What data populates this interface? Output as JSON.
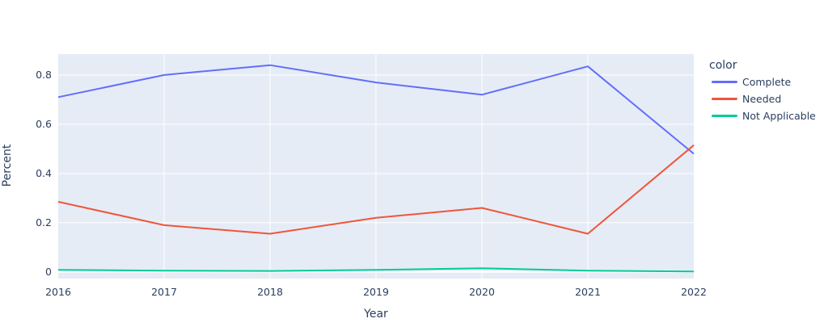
{
  "figure": {
    "background": "#ffffff",
    "plot_background": "#e5ecf6",
    "grid_color": "#ffffff",
    "text_color": "#2a3f5f"
  },
  "legend": {
    "title": "color",
    "position": "right"
  },
  "chart_data": {
    "type": "line",
    "title": "",
    "xlabel": "Year",
    "ylabel": "Percent",
    "x": [
      2016,
      2017,
      2018,
      2019,
      2020,
      2021,
      2022
    ],
    "xtick_labels": [
      "2016",
      "2017",
      "2018",
      "2019",
      "2020",
      "2021",
      "2022"
    ],
    "xlim": [
      2016,
      2022
    ],
    "ylim": [
      -0.027,
      0.885
    ],
    "yticks": [
      0,
      0.2,
      0.4,
      0.6,
      0.8
    ],
    "ytick_labels": [
      "0",
      "0.2",
      "0.4",
      "0.6",
      "0.8"
    ],
    "grid": true,
    "legend_position": "right",
    "legend_title": "color",
    "series": [
      {
        "name": "Complete",
        "color": "#636efa",
        "values": [
          0.71,
          0.8,
          0.84,
          0.77,
          0.72,
          0.835,
          0.48
        ]
      },
      {
        "name": "Needed",
        "color": "#ef553b",
        "values": [
          0.285,
          0.19,
          0.155,
          0.22,
          0.26,
          0.155,
          0.515
        ]
      },
      {
        "name": "Not Applicable",
        "color": "#00cc96",
        "values": [
          0.008,
          0.005,
          0.004,
          0.008,
          0.015,
          0.005,
          0.002
        ]
      }
    ]
  }
}
